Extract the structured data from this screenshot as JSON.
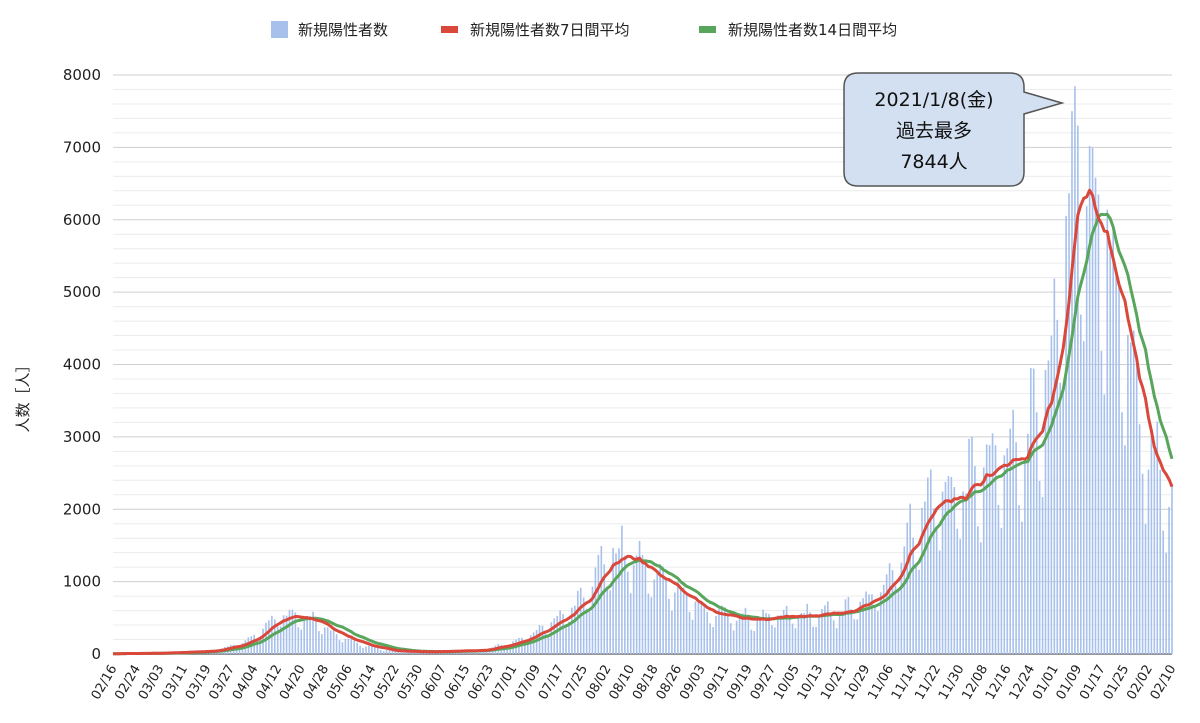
{
  "chart_data": {
    "type": "bar+line",
    "ylabel": "人数［人］",
    "ylim": [
      0,
      8000
    ],
    "yticks": [
      0,
      1000,
      2000,
      3000,
      4000,
      5000,
      6000,
      7000,
      8000
    ],
    "start_date": "2020-02-16",
    "end_date": "2021-02-10",
    "xticks": [
      "02/16",
      "02/24",
      "03/03",
      "03/11",
      "03/19",
      "03/27",
      "04/04",
      "04/12",
      "04/20",
      "04/28",
      "05/06",
      "05/14",
      "05/22",
      "05/30",
      "06/07",
      "06/15",
      "06/23",
      "07/01",
      "07/09",
      "07/17",
      "07/25",
      "08/02",
      "08/10",
      "08/18",
      "08/26",
      "09/03",
      "09/11",
      "09/19",
      "09/27",
      "10/05",
      "10/13",
      "10/21",
      "10/29",
      "11/06",
      "11/14",
      "11/22",
      "11/30",
      "12/08",
      "12/16",
      "12/24",
      "01/01",
      "01/09",
      "01/17",
      "01/25",
      "02/02",
      "02/10"
    ],
    "legend": {
      "position": "top",
      "entries": [
        {
          "label": "新規陽性者数",
          "color": "#a7c0ec",
          "kind": "bar"
        },
        {
          "label": "新規陽性者数7日間平均",
          "color": "#d9483b",
          "kind": "line"
        },
        {
          "label": "新規陽性者数14日間平均",
          "color": "#58a55c",
          "kind": "line"
        }
      ]
    },
    "series_shape": [
      [
        "2020-02-16",
        5
      ],
      [
        "2020-03-01",
        10
      ],
      [
        "2020-03-20",
        40
      ],
      [
        "2020-04-01",
        150
      ],
      [
        "2020-04-10",
        450
      ],
      [
        "2020-04-15",
        560
      ],
      [
        "2020-04-22",
        500
      ],
      [
        "2020-05-01",
        280
      ],
      [
        "2020-05-10",
        130
      ],
      [
        "2020-05-20",
        40
      ],
      [
        "2020-06-01",
        30
      ],
      [
        "2020-06-20",
        50
      ],
      [
        "2020-07-01",
        150
      ],
      [
        "2020-07-15",
        420
      ],
      [
        "2020-07-25",
        800
      ],
      [
        "2020-08-02",
        1300
      ],
      [
        "2020-08-08",
        1370
      ],
      [
        "2020-08-18",
        1050
      ],
      [
        "2020-08-26",
        880
      ],
      [
        "2020-09-05",
        550
      ],
      [
        "2020-09-20",
        470
      ],
      [
        "2020-10-01",
        500
      ],
      [
        "2020-10-20",
        560
      ],
      [
        "2020-11-01",
        750
      ],
      [
        "2020-11-10",
        1350
      ],
      [
        "2020-11-20",
        2100
      ],
      [
        "2020-11-30",
        2200
      ],
      [
        "2020-12-08",
        2450
      ],
      [
        "2020-12-20",
        2700
      ],
      [
        "2020-12-27",
        3450
      ],
      [
        "2021-01-01",
        3600
      ],
      [
        "2021-01-05",
        5600
      ],
      [
        "2021-01-09",
        6350
      ],
      [
        "2021-01-13",
        5950
      ],
      [
        "2021-01-17",
        5950
      ],
      [
        "2021-01-24",
        4300
      ],
      [
        "2021-02-02",
        2700
      ],
      [
        "2021-02-10",
        2050
      ]
    ],
    "annotation": {
      "lines": [
        "2021/1/8(金)",
        "過去最多",
        "7844人"
      ],
      "date": "2021-01-08",
      "value": 7844
    }
  }
}
